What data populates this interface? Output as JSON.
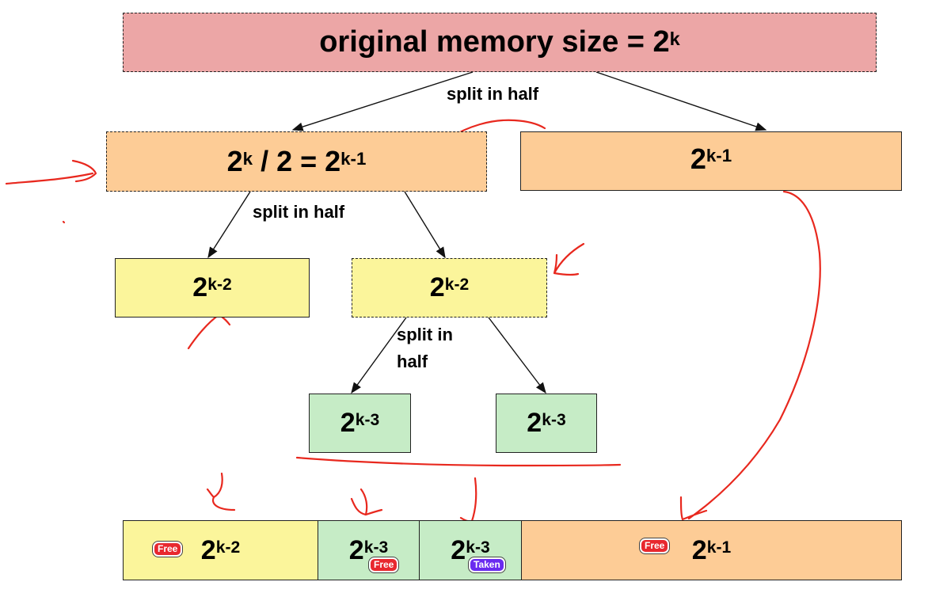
{
  "base": "2",
  "root": {
    "text": "original memory size = 2",
    "exp": "k"
  },
  "split_labels": {
    "first": "split in half",
    "second": "split in half",
    "third_line1": "split in",
    "third_line2": "half"
  },
  "level1": {
    "left": {
      "prefix": "2",
      "prefix_exp": "k",
      "middle": " / 2 = 2",
      "exp": "k-1"
    },
    "right": {
      "exp": "k-1"
    }
  },
  "level2": {
    "left_exp": "k-2",
    "right_exp": "k-2"
  },
  "level3": {
    "left_exp": "k-3",
    "right_exp": "k-3"
  },
  "bottom_bar": {
    "seg1": {
      "exp": "k-2",
      "badge": "Free"
    },
    "seg2": {
      "exp": "k-3",
      "badge": "Free"
    },
    "seg3": {
      "exp": "k-3",
      "badge": "Taken"
    },
    "seg4": {
      "exp": "k-1",
      "badge": "Free"
    }
  },
  "colors": {
    "root": "#eca6a6",
    "level1": "#fdcc96",
    "level2": "#fbf59b",
    "level3": "#c6ecc6",
    "annotation": "#e8281e",
    "badge_free": "#e8282e",
    "badge_taken": "#6a2bf0"
  }
}
